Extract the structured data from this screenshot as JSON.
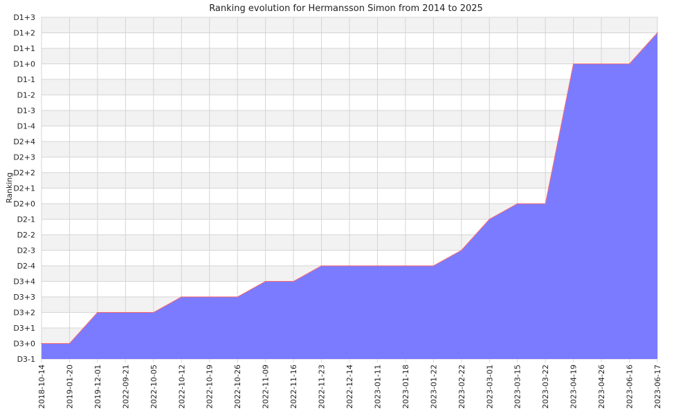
{
  "chart_data": {
    "type": "area",
    "title": "Ranking evolution for Hermansson Simon from 2014 to 2025",
    "xlabel": "",
    "ylabel": "Ranking",
    "grid": true,
    "legend": "none",
    "y_categories": [
      "D3-1",
      "D3+0",
      "D3+1",
      "D3+2",
      "D3+3",
      "D3+4",
      "D2-4",
      "D2-3",
      "D2-2",
      "D2-1",
      "D2+0",
      "D2+1",
      "D2+2",
      "D2+3",
      "D2+4",
      "D1-4",
      "D1-3",
      "D1-2",
      "D1-1",
      "D1+0",
      "D1+1",
      "D1+2",
      "D1+3"
    ],
    "x": [
      "2018-10-14",
      "2019-01-20",
      "2019-12-01",
      "2022-09-21",
      "2022-10-05",
      "2022-10-12",
      "2022-10-19",
      "2022-10-26",
      "2022-11-09",
      "2022-11-16",
      "2022-11-23",
      "2022-12-14",
      "2023-01-11",
      "2023-01-18",
      "2023-01-22",
      "2023-02-22",
      "2023-03-01",
      "2023-03-15",
      "2023-03-22",
      "2023-04-19",
      "2023-04-26",
      "2023-06-16",
      "2023-06-17"
    ],
    "series": [
      {
        "values": [
          "D3+0",
          "D3+0",
          "D3+2",
          "D3+2",
          "D3+2",
          "D3+3",
          "D3+3",
          "D3+3",
          "D3+4",
          "D3+4",
          "D2-4",
          "D2-4",
          "D2-4",
          "D2-4",
          "D2-4",
          "D2-3",
          "D2-1",
          "D2+0",
          "D2+0",
          "D1+0",
          "D1+0",
          "D1+0",
          "D1+2"
        ]
      }
    ],
    "colors": {
      "fill": "#7b7bff",
      "line": "#ff6a6a",
      "band": "#f2f2f2",
      "grid": "#d4d4d4"
    }
  }
}
